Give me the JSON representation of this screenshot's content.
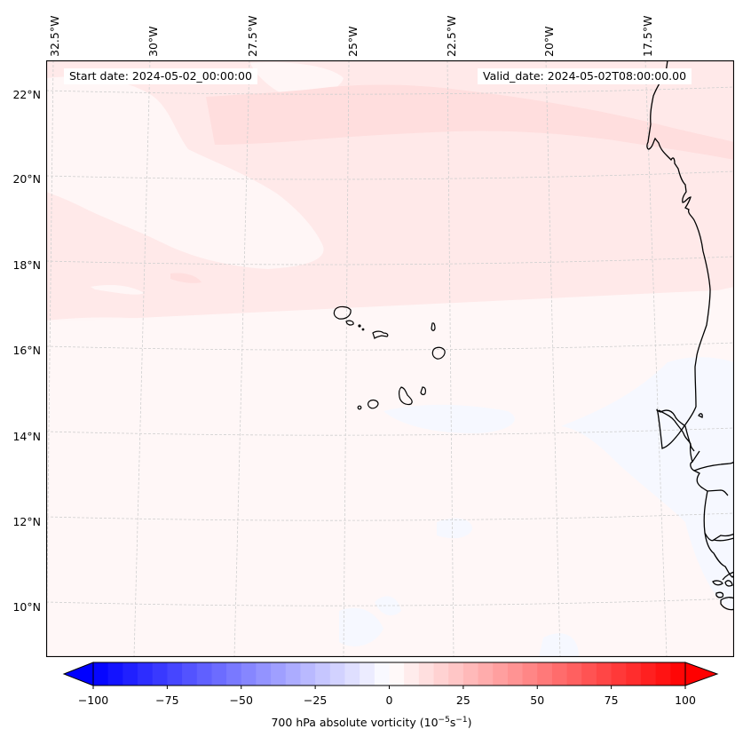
{
  "chart_data": {
    "type": "heatmap",
    "title": "",
    "variable": "700 hPa absolute vorticity",
    "units": "10^-5 s^-1",
    "colorbar_label_main": "700 hPa absolute vorticity (10",
    "colorbar_label_exp1": "−5",
    "colorbar_label_mid": "s",
    "colorbar_label_exp2": "−1",
    "colorbar_label_end": ")",
    "colormap": "bwr",
    "colorbar_range": [
      -100,
      100
    ],
    "colorbar_step": 5,
    "colorbar_extend": "both",
    "colorbar_ticks": [
      -100,
      -75,
      -50,
      -25,
      0,
      25,
      50,
      75,
      100
    ],
    "colorbar_tick_labels": [
      "−100",
      "−75",
      "−50",
      "−25",
      "0",
      "25",
      "50",
      "75",
      "100"
    ],
    "lon_ticks": [
      -32.5,
      -30,
      -27.5,
      -25,
      -22.5,
      -20,
      -17.5
    ],
    "lon_tick_labels": [
      "32.5°W",
      "30°W",
      "27.5°W",
      "25°W",
      "22.5°W",
      "20°W",
      "17.5°W"
    ],
    "lat_ticks": [
      22,
      20,
      18,
      16,
      14,
      12,
      10
    ],
    "lat_tick_labels": [
      "22°N",
      "20°N",
      "18°N",
      "16°N",
      "14°N",
      "12°N",
      "10°N"
    ],
    "extent": {
      "lon": [
        -32.6,
        -16.3
      ],
      "lat": [
        8.9,
        22.8
      ]
    },
    "gridlines": true,
    "field_regions": [
      {
        "name": "northern-positive-band",
        "value_range": [
          5,
          10
        ],
        "description": "weak positive vorticity band across north of domain"
      },
      {
        "name": "northeast-streak",
        "value_range": [
          10,
          15
        ],
        "description": "slightly stronger streak near 21.5N, 23W-16W"
      },
      {
        "name": "southern-background",
        "value_range": [
          0,
          5
        ],
        "description": "near-zero positive background over south"
      },
      {
        "name": "southeast-negative-patches",
        "value_range": [
          -5,
          0
        ],
        "description": "weak negative patches near African coast 10-15N"
      }
    ]
  },
  "annotations": {
    "start_date": "Start date: 2024-05-02_00:00:00",
    "valid_date": "Valid_date: 2024-05-02T08:00:00.00"
  },
  "colors": {
    "bin_0_5": "#fff5f5",
    "bin_5_10": "#ffe8e8",
    "bin_10_15": "#ffdcdc",
    "bin_neg_5_0": "#f5f7ff",
    "gridline": "#c8c8c8",
    "coastline": "#000000"
  }
}
